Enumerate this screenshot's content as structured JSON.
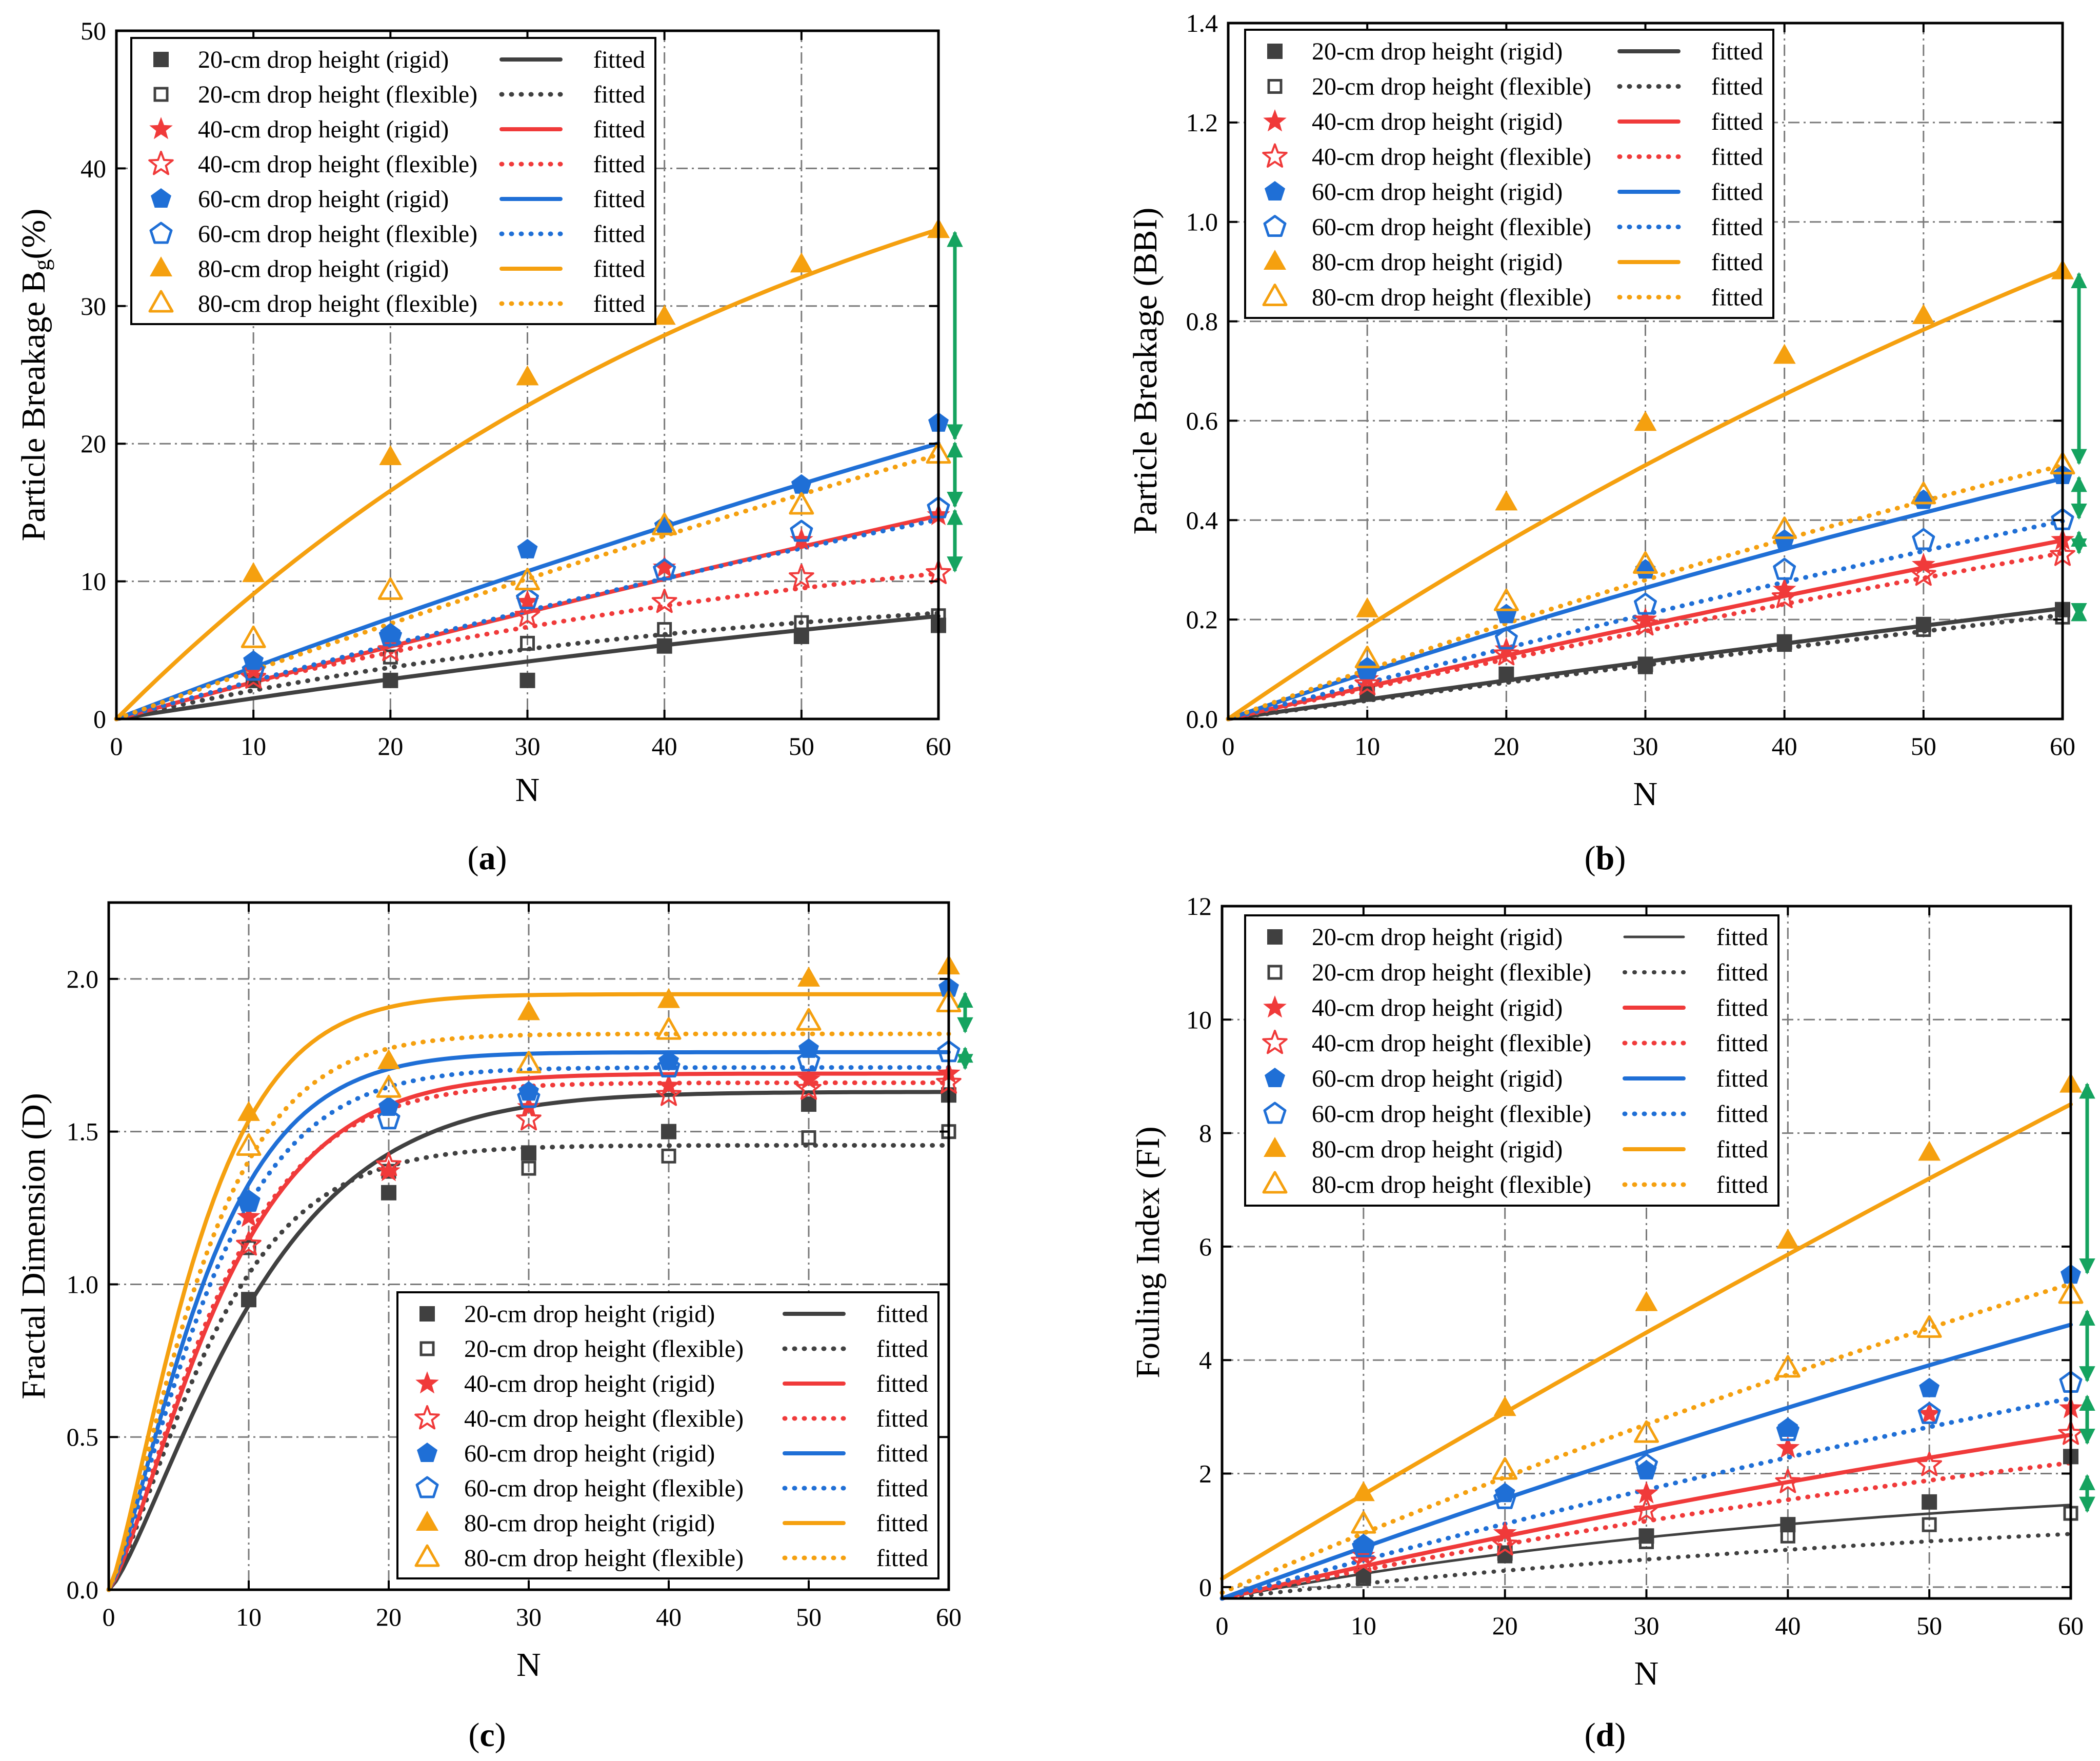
{
  "figure": {
    "legend_fitted_label": "fitted",
    "series_style": [
      {
        "color": "#404040",
        "marker": "square"
      },
      {
        "color": "#404040",
        "marker": "square-open"
      },
      {
        "color": "#f03a3a",
        "marker": "star"
      },
      {
        "color": "#f03a3a",
        "marker": "star-open"
      },
      {
        "color": "#1f6fd6",
        "marker": "pentagon"
      },
      {
        "color": "#1f6fd6",
        "marker": "pentagon-open"
      },
      {
        "color": "#f5a00f",
        "marker": "triangle"
      },
      {
        "color": "#f5a00f",
        "marker": "triangle-open"
      }
    ],
    "arrow_color": "#15a35f"
  },
  "chart_data": [
    {
      "type": "scatter",
      "panel": "a",
      "caption_open": "(",
      "caption_letter": "a",
      "caption_close": ")",
      "title": "",
      "xlabel": "N",
      "ylabel": "Particle Breakage B",
      "ylabel_sub": "g",
      "ylabel_suffix": "(%)",
      "xlim": [
        0,
        60
      ],
      "ylim": [
        0,
        50
      ],
      "xticks": [
        0,
        10,
        20,
        30,
        40,
        50,
        60
      ],
      "yticks": [
        0,
        10,
        20,
        30,
        40,
        50
      ],
      "grid": true,
      "legend_position": "top-left",
      "x": [
        10,
        20,
        30,
        40,
        50,
        60
      ],
      "series": [
        {
          "name": "20-cm drop height (rigid)",
          "values": [
            2.8,
            2.8,
            2.8,
            5.3,
            6.0,
            6.8
          ],
          "fit": {
            "a": 20,
            "b": 0.0078,
            "c": 1
          }
        },
        {
          "name": "20-cm drop height (flexible)",
          "values": [
            2.8,
            4.5,
            5.5,
            6.5,
            7.0,
            7.5
          ],
          "fit": {
            "a": 10.5,
            "b": 0.022,
            "c": 1
          }
        },
        {
          "name": "40-cm drop height (rigid)",
          "values": [
            3.5,
            6.0,
            8.5,
            11.0,
            13.0,
            14.8
          ],
          "fit": {
            "a": 80,
            "b": 0.0034,
            "c": 1
          }
        },
        {
          "name": "40-cm drop height (flexible)",
          "values": [
            3.0,
            5.0,
            7.5,
            8.5,
            10.3,
            10.6
          ],
          "fit": {
            "a": 16,
            "b": 0.018,
            "c": 1
          }
        },
        {
          "name": "60-cm drop height (rigid)",
          "values": [
            4.2,
            6.2,
            12.3,
            14.0,
            17.0,
            21.5
          ],
          "fit": {
            "a": 80,
            "b": 0.0048,
            "c": 1
          }
        },
        {
          "name": "60-cm drop height (flexible)",
          "values": [
            3.5,
            6.0,
            8.7,
            10.8,
            13.6,
            15.3
          ],
          "fit": {
            "a": 50,
            "b": 0.0057,
            "c": 1
          }
        },
        {
          "name": "80-cm drop height (rigid)",
          "values": [
            10.5,
            19.0,
            24.8,
            29.2,
            33.0,
            35.5
          ],
          "fit": {
            "a": 52,
            "b": 0.0192,
            "c": 1
          }
        },
        {
          "name": "80-cm drop height (flexible)",
          "values": [
            5.8,
            9.3,
            10.0,
            14.0,
            15.5,
            19.2
          ],
          "fit": {
            "a": 90,
            "b": 0.004,
            "c": 1
          }
        }
      ],
      "gap_arrows": [
        [
          20.2,
          35.5
        ],
        [
          15.3,
          20.2
        ],
        [
          10.6,
          15.3
        ]
      ]
    },
    {
      "type": "scatter",
      "panel": "b",
      "caption_open": "(",
      "caption_letter": "b",
      "caption_close": ")",
      "title": "",
      "xlabel": "N",
      "ylabel": "Particle Breakage (BBI)",
      "ylabel_sub": "",
      "ylabel_suffix": "",
      "xlim": [
        0,
        60
      ],
      "ylim": [
        0,
        1.4
      ],
      "xticks": [
        0,
        10,
        20,
        30,
        40,
        50,
        60
      ],
      "yticks": [
        "0.0",
        "0.2",
        "0.4",
        "0.6",
        "0.8",
        "1.0",
        "1.2",
        "1.4"
      ],
      "grid": true,
      "legend_position": "top-left",
      "x": [
        10,
        20,
        30,
        40,
        50,
        60
      ],
      "series": [
        {
          "name": "20-cm drop height (rigid)",
          "values": [
            0.05,
            0.09,
            0.11,
            0.155,
            0.19,
            0.22
          ],
          "fit": {
            "a": 1.8,
            "b": 0.0022,
            "c": 1
          }
        },
        {
          "name": "20-cm drop height (flexible)",
          "values": [
            0.05,
            0.09,
            0.105,
            0.15,
            0.18,
            0.205
          ],
          "fit": {
            "a": 1.5,
            "b": 0.0025,
            "c": 1
          }
        },
        {
          "name": "40-cm drop height (rigid)",
          "values": [
            0.08,
            0.14,
            0.2,
            0.26,
            0.31,
            0.36
          ],
          "fit": {
            "a": 2.0,
            "b": 0.0033,
            "c": 1
          }
        },
        {
          "name": "40-cm drop height (flexible)",
          "values": [
            0.07,
            0.13,
            0.19,
            0.245,
            0.29,
            0.33
          ],
          "fit": {
            "a": 1.6,
            "b": 0.0039,
            "c": 1
          }
        },
        {
          "name": "60-cm drop height (rigid)",
          "values": [
            0.1,
            0.21,
            0.3,
            0.36,
            0.44,
            0.49
          ],
          "fit": {
            "a": 1.6,
            "b": 0.006,
            "c": 1
          }
        },
        {
          "name": "60-cm drop height (flexible)",
          "values": [
            0.1,
            0.16,
            0.23,
            0.3,
            0.36,
            0.4
          ],
          "fit": {
            "a": 2.0,
            "b": 0.0037,
            "c": 1
          }
        },
        {
          "name": "80-cm drop height (rigid)",
          "values": [
            0.22,
            0.435,
            0.595,
            0.73,
            0.81,
            0.9
          ],
          "fit": {
            "a": 2.2,
            "b": 0.0088,
            "c": 1
          }
        },
        {
          "name": "80-cm drop height (flexible)",
          "values": [
            0.12,
            0.235,
            0.31,
            0.38,
            0.45,
            0.51
          ],
          "fit": {
            "a": 1.6,
            "b": 0.0064,
            "c": 1
          }
        }
      ],
      "gap_arrows": [
        [
          0.51,
          0.9
        ],
        [
          0.4,
          0.49
        ],
        [
          0.33,
          0.38
        ],
        [
          0.2,
          0.23
        ]
      ]
    },
    {
      "type": "scatter",
      "panel": "c",
      "caption_open": "(",
      "caption_letter": "c",
      "caption_close": ")",
      "title": "",
      "xlabel": "N",
      "ylabel": "Fractal Dimension (D)",
      "ylabel_sub": "",
      "ylabel_suffix": "",
      "xlim": [
        0,
        60
      ],
      "ylim": [
        0,
        2.25
      ],
      "xticks": [
        0,
        10,
        20,
        30,
        40,
        50,
        60
      ],
      "yticks": [
        "0.0",
        "0.5",
        "1.0",
        "1.5",
        "2.0"
      ],
      "grid": true,
      "legend_position": "bottom-right",
      "x": [
        10,
        20,
        30,
        40,
        50,
        60
      ],
      "series": [
        {
          "name": "20-cm drop height (rigid)",
          "values": [
            0.95,
            1.3,
            1.43,
            1.5,
            1.59,
            1.62
          ],
          "fit": {
            "a": 1.63,
            "b": 0.088,
            "c": 1.3
          }
        },
        {
          "name": "20-cm drop height (flexible)",
          "values": [
            1.12,
            1.37,
            1.38,
            1.42,
            1.48,
            1.5
          ],
          "fit": {
            "a": 1.455,
            "b": 0.118,
            "c": 1.3
          }
        },
        {
          "name": "40-cm drop height (rigid)",
          "values": [
            1.22,
            1.37,
            1.58,
            1.65,
            1.67,
            1.69
          ],
          "fit": {
            "a": 1.69,
            "b": 0.11,
            "c": 1.3
          }
        },
        {
          "name": "40-cm drop height (flexible)",
          "values": [
            1.13,
            1.39,
            1.54,
            1.62,
            1.64,
            1.66
          ],
          "fit": {
            "a": 1.66,
            "b": 0.115,
            "c": 1.3
          }
        },
        {
          "name": "60-cm drop height (rigid)",
          "values": [
            1.27,
            1.58,
            1.63,
            1.73,
            1.77,
            1.97
          ],
          "fit": {
            "a": 1.76,
            "b": 0.13,
            "c": 1.3
          }
        },
        {
          "name": "60-cm drop height (flexible)",
          "values": [
            1.27,
            1.54,
            1.61,
            1.71,
            1.73,
            1.76
          ],
          "fit": {
            "a": 1.71,
            "b": 0.125,
            "c": 1.3
          }
        },
        {
          "name": "80-cm drop height (rigid)",
          "values": [
            1.56,
            1.73,
            1.89,
            1.93,
            2.0,
            2.04
          ],
          "fit": {
            "a": 1.95,
            "b": 0.14,
            "c": 1.3
          }
        },
        {
          "name": "80-cm drop height (flexible)",
          "values": [
            1.45,
            1.64,
            1.72,
            1.83,
            1.86,
            1.92
          ],
          "fit": {
            "a": 1.82,
            "b": 0.135,
            "c": 1.3
          }
        }
      ],
      "gap_arrows": [
        [
          1.82,
          1.96
        ],
        [
          1.7,
          1.78
        ]
      ]
    },
    {
      "type": "scatter",
      "panel": "d",
      "caption_open": "(",
      "caption_letter": "d",
      "caption_close": ")",
      "title": "",
      "xlabel": "N",
      "ylabel": "Fouling Index (FI)",
      "ylabel_sub": "",
      "ylabel_suffix": "",
      "xlim": [
        0,
        60
      ],
      "ylim": [
        -0.2,
        12
      ],
      "xticks": [
        0,
        10,
        20,
        30,
        40,
        50,
        60
      ],
      "yticks": [
        0,
        2,
        4,
        6,
        8,
        10,
        12
      ],
      "grid": true,
      "legend_position": "top-left",
      "x": [
        10,
        20,
        30,
        40,
        50,
        60
      ],
      "series": [
        {
          "name": "20-cm drop height (rigid)",
          "values": [
            0.2,
            0.6,
            0.9,
            1.1,
            1.5,
            2.3
          ],
          "fit": {
            "a": 2.3,
            "b": 0.021,
            "c": 1,
            "d": -0.2
          }
        },
        {
          "name": "20-cm drop height (flexible)",
          "values": [
            0.15,
            0.55,
            0.8,
            0.9,
            1.1,
            1.3
          ],
          "fit": {
            "a": 2.0,
            "b": 0.014,
            "c": 1,
            "d": -0.2
          }
        },
        {
          "name": "40-cm drop height (rigid)",
          "values": [
            0.55,
            0.95,
            1.65,
            2.45,
            3.05,
            3.15
          ],
          "fit": {
            "a": 8.5,
            "b": 0.0069,
            "c": 1,
            "d": -0.2
          }
        },
        {
          "name": "40-cm drop height (flexible)",
          "values": [
            0.45,
            0.75,
            1.35,
            1.85,
            2.15,
            2.7
          ],
          "fit": {
            "a": 5.5,
            "b": 0.0095,
            "c": 1,
            "d": -0.2
          }
        },
        {
          "name": "60-cm drop height (rigid)",
          "values": [
            0.75,
            1.65,
            2.05,
            2.8,
            3.5,
            5.5
          ],
          "fit": {
            "a": 20,
            "b": 0.0046,
            "c": 1,
            "d": -0.2
          }
        },
        {
          "name": "60-cm drop height (flexible)",
          "values": [
            0.7,
            1.55,
            2.15,
            2.75,
            3.05,
            3.6
          ],
          "fit": {
            "a": 12,
            "b": 0.0058,
            "c": 1,
            "d": -0.2
          }
        },
        {
          "name": "80-cm drop height (rigid)",
          "values": [
            1.65,
            3.15,
            5.0,
            6.1,
            7.65,
            8.85
          ],
          "fit": {
            "a": 60,
            "b": 0.0025,
            "c": 1,
            "d": 0.15
          }
        },
        {
          "name": "80-cm drop height (flexible)",
          "values": [
            1.1,
            2.05,
            2.7,
            3.85,
            4.55,
            5.15
          ],
          "fit": {
            "a": 18,
            "b": 0.006,
            "c": 1,
            "d": -0.1
          }
        }
      ],
      "gap_arrows": [
        [
          5.5,
          8.9
        ],
        [
          3.6,
          4.9
        ],
        [
          2.5,
          3.4
        ],
        [
          1.3,
          2.0
        ]
      ]
    }
  ]
}
